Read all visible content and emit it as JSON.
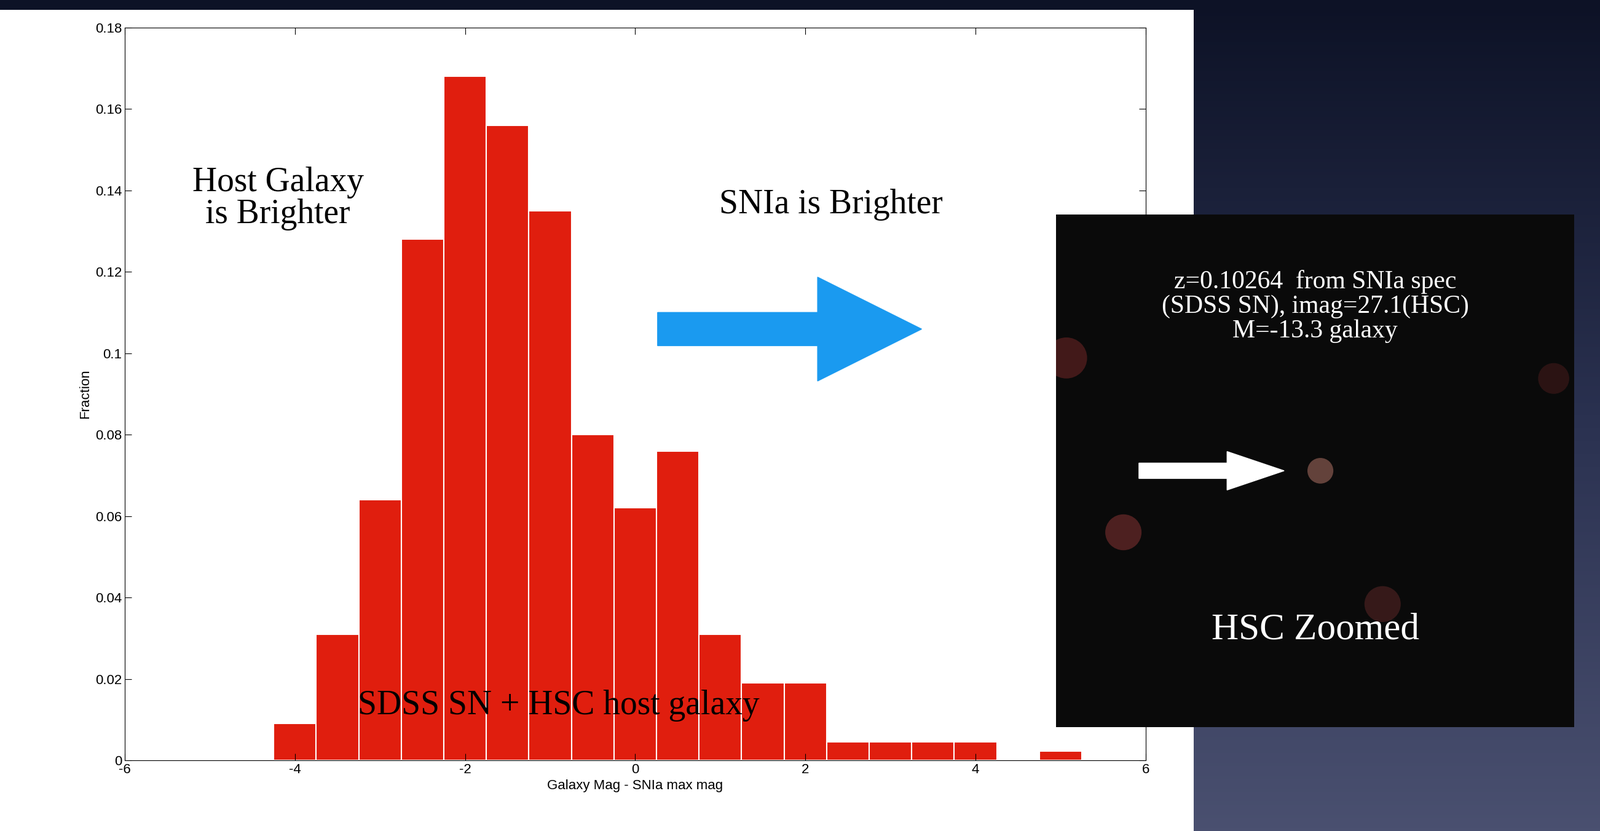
{
  "chart_data": {
    "type": "histogram",
    "bins": [
      -4.25,
      -3.75,
      -3.25,
      -2.75,
      -2.25,
      -1.75,
      -1.25,
      -0.75,
      -0.25,
      0.25,
      0.75,
      1.25,
      1.75,
      2.25,
      2.75,
      3.25,
      3.75,
      4.25,
      4.75,
      5.25
    ],
    "values": [
      0.009,
      0.031,
      0.064,
      0.128,
      0.168,
      0.156,
      0.135,
      0.08,
      0.062,
      0.076,
      0.031,
      0.019,
      0.019,
      0.0045,
      0.0045,
      0.0045,
      0.0045,
      0,
      0.0023
    ],
    "color": "#e01e0e",
    "xlabel": "Galaxy Mag - SNIa max mag",
    "ylabel": "Fraction",
    "xlim": [
      -6,
      6
    ],
    "ylim": [
      0,
      0.18
    ],
    "xticks": [
      -6,
      -4,
      -2,
      0,
      2,
      4,
      6
    ],
    "yticks": [
      0,
      0.02,
      0.04,
      0.06,
      0.08,
      0.1,
      0.12,
      0.14,
      0.16,
      0.18
    ],
    "grid": false,
    "annotations": [
      "Host Galaxy\nis Brighter",
      "SNIa is Brighter",
      "SDSS SN + HSC host galaxy",
      "z=0.10264  from SNIa spec\n(SDSS SN), imag=27.1(HSC)\nM=-13.3 galaxy",
      "HSC Zoomed"
    ]
  }
}
